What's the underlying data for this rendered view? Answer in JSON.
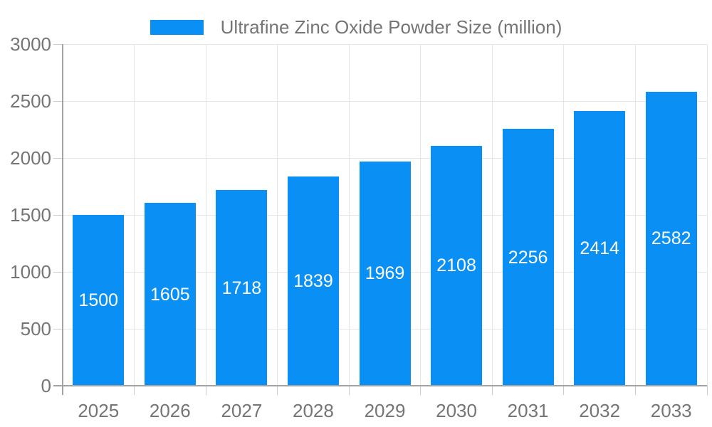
{
  "chart_data": {
    "type": "bar",
    "title": "Ultrafine Zinc Oxide Powder Size (million)",
    "legend": "Ultrafine Zinc Oxide Powder Size (million)",
    "legend_position": "top",
    "categories": [
      "2025",
      "2026",
      "2027",
      "2028",
      "2029",
      "2030",
      "2031",
      "2032",
      "2033"
    ],
    "values": [
      1500,
      1605,
      1718,
      1839,
      1969,
      2108,
      2256,
      2414,
      2582
    ],
    "xlabel": "",
    "ylabel": "",
    "ylim": [
      0,
      3000
    ],
    "yticks": [
      0,
      500,
      1000,
      1500,
      2000,
      2500,
      3000
    ],
    "grid": true,
    "value_label_position": "inside-center",
    "colors": {
      "bar": "#0a90f5",
      "text": "#757575",
      "grid": "#e6e6e6",
      "tick": "#cccccc",
      "axis": "#a3a3a3",
      "value_label": "#ffffff",
      "background": "#ffffff"
    }
  }
}
